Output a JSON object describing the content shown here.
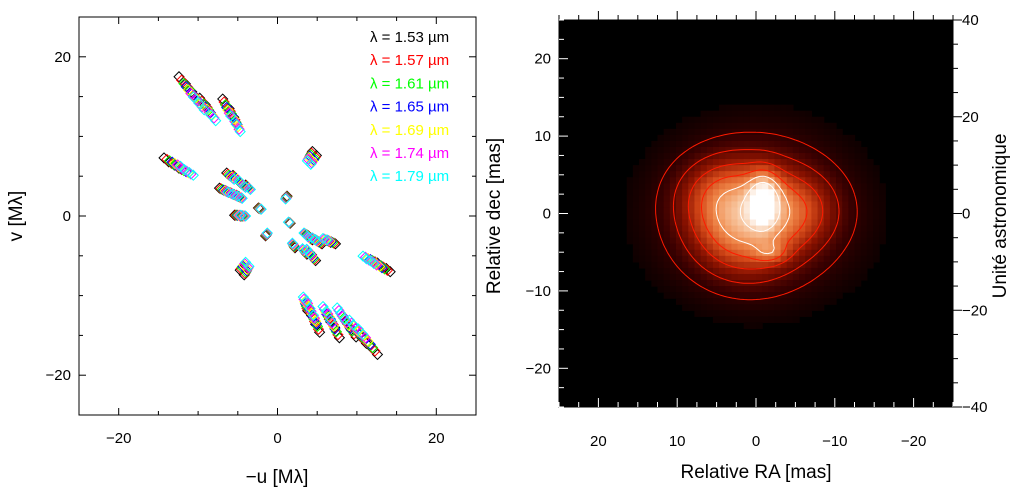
{
  "chart_data": [
    {
      "type": "scatter",
      "xlabel": "−u [Mλ]",
      "ylabel": "v [Mλ]",
      "xlim": [
        -25,
        25
      ],
      "ylim": [
        -25,
        25
      ],
      "xticks": [
        -20,
        0,
        20
      ],
      "yticks": [
        -20,
        0,
        20
      ],
      "xticklabels": [
        "−20",
        "0",
        "20"
      ],
      "yticklabels": [
        "−20",
        "0",
        "20"
      ],
      "legend_position": "top-right",
      "grid": false,
      "series": [
        {
          "name": "λ = 1.53 µm",
          "color": "#000000",
          "scale": 1.53
        },
        {
          "name": "λ = 1.57 µm",
          "color": "#ff0000",
          "scale": 1.57
        },
        {
          "name": "λ = 1.61 µm",
          "color": "#00ff00",
          "scale": 1.61
        },
        {
          "name": "λ = 1.65 µm",
          "color": "#0000ff",
          "scale": 1.65
        },
        {
          "name": "λ = 1.69 µm",
          "color": "#ffff00",
          "scale": 1.69
        },
        {
          "name": "λ = 1.74 µm",
          "color": "#ff00ff",
          "scale": 1.74
        },
        {
          "name": "λ = 1.79 µm",
          "color": "#00ffff",
          "scale": 1.79
        }
      ],
      "baselines_at_1_53um": [
        [
          -12.4,
          17.5
        ],
        [
          -11.6,
          16.6
        ],
        [
          -10.8,
          15.6
        ],
        [
          -9.8,
          14.8
        ],
        [
          -6.9,
          14.7
        ],
        [
          -6.1,
          13.5
        ],
        [
          -5.5,
          12.4
        ],
        [
          -9.1,
          14.0
        ],
        [
          -14.3,
          7.3
        ],
        [
          -13.7,
          6.8
        ],
        [
          -13.0,
          6.4
        ],
        [
          -12.4,
          6.0
        ],
        [
          -7.3,
          3.5
        ],
        [
          -6.6,
          3.2
        ],
        [
          -5.9,
          2.9
        ],
        [
          -5.2,
          2.6
        ],
        [
          -6.4,
          5.4
        ],
        [
          -5.6,
          5.1
        ],
        [
          -4.7,
          4.2
        ],
        [
          -4.0,
          3.9
        ],
        [
          -5.4,
          0.1
        ],
        [
          -4.7,
          0.0
        ],
        [
          -2.4,
          1.0
        ],
        [
          -1.5,
          -2.5
        ],
        [
          -4.7,
          -6.8
        ],
        [
          -4.2,
          -7.4
        ],
        [
          1.2,
          2.5
        ],
        [
          1.6,
          -0.9
        ],
        [
          2.2,
          -4.0
        ],
        [
          3.7,
          -4.8
        ],
        [
          4.4,
          8.1
        ],
        [
          4.9,
          7.6
        ],
        [
          3.9,
          -2.5
        ],
        [
          4.4,
          -3.0
        ],
        [
          5.1,
          -3.2
        ],
        [
          5.6,
          -3.5
        ],
        [
          4.3,
          -4.9
        ],
        [
          4.8,
          -5.6
        ],
        [
          6.7,
          -3.3
        ],
        [
          7.3,
          -3.5
        ],
        [
          12.6,
          -5.9
        ],
        [
          13.1,
          -6.3
        ],
        [
          13.7,
          -6.6
        ],
        [
          14.2,
          -7.0
        ],
        [
          3.8,
          -11.9
        ],
        [
          4.3,
          -12.5
        ],
        [
          4.8,
          -13.6
        ],
        [
          5.3,
          -14.6
        ],
        [
          6.7,
          -13.3
        ],
        [
          7.2,
          -14.0
        ],
        [
          7.8,
          -15.3
        ],
        [
          8.8,
          -13.5
        ],
        [
          9.3,
          -14.3
        ],
        [
          9.9,
          -15.2
        ],
        [
          10.6,
          -15.3
        ],
        [
          11.2,
          -16.0
        ],
        [
          11.9,
          -16.6
        ],
        [
          12.6,
          -17.4
        ]
      ]
    },
    {
      "type": "heatmap",
      "xlabel": "Relative RA [mas]",
      "ylabel": "Relative dec [mas]",
      "y2label": "Unité astronomique",
      "xlim": [
        25,
        -25
      ],
      "ylim": [
        -25,
        25
      ],
      "y2lim": [
        -40,
        40
      ],
      "xticks": [
        -20,
        -10,
        0,
        10,
        20
      ],
      "xticklabels": [
        "−20",
        "−10",
        "0",
        "10",
        "20"
      ],
      "yticks": [
        -20,
        -10,
        0,
        10,
        20
      ],
      "yticklabels": [
        "−20",
        "−10",
        "0",
        "10",
        "20"
      ],
      "y2ticks": [
        -40,
        -20,
        0,
        20,
        40
      ],
      "y2ticklabels": [
        "−40",
        "−20",
        "0",
        "20",
        "40"
      ],
      "colormap": [
        "#000000",
        "#3a0000",
        "#8a1200",
        "#d44818",
        "#f08a4c",
        "#f8c9a4",
        "#ffffff"
      ],
      "contour_color": "#ff1a00",
      "components": [
        {
          "ra": 0.0,
          "dec": 0.0,
          "sigma_ra": 7.0,
          "sigma_dec": 6.0,
          "amp": 0.34
        },
        {
          "ra": 1.5,
          "dec": -1.5,
          "sigma_ra": 4.0,
          "sigma_dec": 4.0,
          "amp": 0.36
        },
        {
          "ra": -5.0,
          "dec": 0.5,
          "sigma_ra": 3.5,
          "sigma_dec": 3.0,
          "amp": 0.2
        },
        {
          "ra": 4.5,
          "dec": 2.5,
          "sigma_ra": 3.5,
          "sigma_dec": 3.0,
          "amp": 0.18
        },
        {
          "ra": -1.0,
          "dec": 1.6,
          "sigma_ra": 1.3,
          "sigma_dec": 2.2,
          "amp": 0.62
        },
        {
          "ra": -1.8,
          "dec": -5.0,
          "sigma_ra": 1.4,
          "sigma_dec": 0.9,
          "amp": 0.2
        }
      ],
      "contour_levels": [
        0.08,
        0.17,
        0.3,
        0.45,
        0.62,
        0.82
      ]
    }
  ]
}
